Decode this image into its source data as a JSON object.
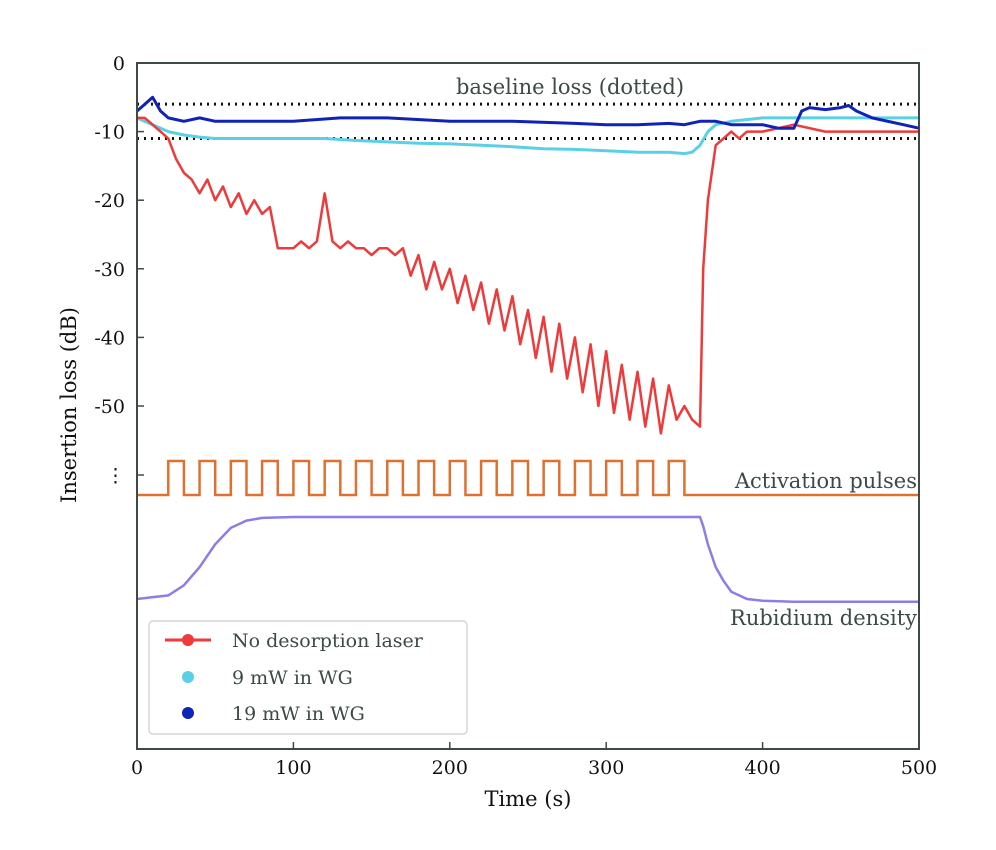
{
  "chart_data": {
    "type": "line",
    "title": "",
    "xlabel": "Time (s)",
    "ylabel": "Insertion loss (dB)",
    "xlim": [
      0,
      500
    ],
    "ylim": [
      0,
      -100
    ],
    "x_ticks": [
      "0",
      "100",
      "200",
      "300",
      "400",
      "500"
    ],
    "y_ticks": [
      "0",
      "-10",
      "-20",
      "-30",
      "-40",
      "-50",
      "⋮"
    ],
    "baseline": {
      "label": "baseline loss (dotted)",
      "levels": [
        -6,
        -11
      ]
    },
    "series": [
      {
        "name": "No desorption laser",
        "color": "#ee3a3a",
        "x": [
          0,
          5,
          10,
          15,
          20,
          25,
          30,
          35,
          40,
          45,
          50,
          55,
          60,
          65,
          70,
          75,
          80,
          85,
          90,
          95,
          100,
          105,
          110,
          115,
          120,
          125,
          130,
          135,
          140,
          145,
          150,
          155,
          160,
          165,
          170,
          175,
          180,
          185,
          190,
          195,
          200,
          205,
          210,
          215,
          220,
          225,
          230,
          235,
          240,
          245,
          250,
          255,
          260,
          265,
          270,
          275,
          280,
          285,
          290,
          295,
          300,
          305,
          310,
          315,
          320,
          325,
          330,
          335,
          340,
          345,
          350,
          355,
          360,
          362,
          365,
          370,
          375,
          380,
          385,
          390,
          400,
          420,
          440,
          460,
          480,
          500
        ],
        "values": [
          -8,
          -8,
          -9,
          -10,
          -11,
          -14,
          -16,
          -17,
          -19,
          -17,
          -20,
          -18,
          -21,
          -19,
          -22,
          -20,
          -22,
          -21,
          -27,
          -27,
          -27,
          -26,
          -27,
          -26,
          -19,
          -26,
          -27,
          -26,
          -27,
          -27,
          -28,
          -27,
          -27,
          -28,
          -27,
          -31,
          -28,
          -33,
          -29,
          -33,
          -30,
          -35,
          -31,
          -36,
          -32,
          -38,
          -33,
          -39,
          -34,
          -41,
          -36,
          -43,
          -37,
          -45,
          -38,
          -46,
          -40,
          -48,
          -41,
          -50,
          -42,
          -51,
          -44,
          -52,
          -45,
          -53,
          -46,
          -54,
          -47,
          -52,
          -50,
          -52,
          -53,
          -30,
          -20,
          -12,
          -11,
          -10,
          -11,
          -10,
          -10,
          -9,
          -10,
          -10,
          -10,
          -10
        ]
      },
      {
        "name": "9 mW in WG",
        "color": "#5ad0e6",
        "x": [
          0,
          10,
          20,
          30,
          40,
          50,
          60,
          70,
          80,
          90,
          100,
          120,
          140,
          160,
          180,
          200,
          220,
          240,
          260,
          280,
          300,
          320,
          340,
          350,
          355,
          360,
          365,
          370,
          380,
          400,
          450,
          500
        ],
        "values": [
          -8,
          -9,
          -10,
          -10.5,
          -10.8,
          -11,
          -11,
          -11,
          -11,
          -11,
          -11,
          -11,
          -11.3,
          -11.5,
          -11.7,
          -11.8,
          -12,
          -12.2,
          -12.5,
          -12.6,
          -12.8,
          -13,
          -13,
          -13.2,
          -13,
          -12,
          -10,
          -9,
          -8.5,
          -8,
          -8,
          -8
        ]
      },
      {
        "name": "19 mW in WG",
        "color": "#1022b8",
        "x": [
          0,
          5,
          10,
          15,
          20,
          30,
          40,
          50,
          60,
          80,
          100,
          130,
          160,
          200,
          240,
          280,
          300,
          320,
          340,
          350,
          360,
          370,
          380,
          400,
          410,
          420,
          425,
          430,
          440,
          450,
          455,
          460,
          470,
          480,
          490,
          500
        ],
        "values": [
          -7,
          -6,
          -5,
          -7,
          -8,
          -8.5,
          -8,
          -8.5,
          -8.5,
          -8.5,
          -8.5,
          -8,
          -8,
          -8.5,
          -8.5,
          -8.8,
          -9,
          -9,
          -8.8,
          -9,
          -8.5,
          -8.5,
          -9,
          -9,
          -9.5,
          -9.5,
          -7,
          -6.5,
          -6.8,
          -6.5,
          -6.2,
          -7,
          -8,
          -8.5,
          -9,
          -9.5
        ]
      },
      {
        "name": "Activation pulses",
        "color": "#e07030",
        "period_s": 20,
        "on_s": 10,
        "first_on_s": 20,
        "last_off_s": 350,
        "levels": [
          0,
          1
        ]
      },
      {
        "name": "Rubidium density",
        "color": "#8a7ee8",
        "x": [
          0,
          20,
          30,
          40,
          50,
          60,
          70,
          80,
          100,
          200,
          300,
          360,
          362,
          365,
          370,
          375,
          380,
          390,
          400,
          420,
          500
        ],
        "values": [
          0.1,
          0.14,
          0.25,
          0.45,
          0.7,
          0.88,
          0.96,
          0.99,
          1,
          1,
          1,
          1,
          0.9,
          0.7,
          0.45,
          0.3,
          0.18,
          0.1,
          0.08,
          0.07,
          0.07
        ]
      }
    ],
    "annotations": [
      {
        "text": "baseline loss (dotted)"
      },
      {
        "text": "Activation pulses"
      },
      {
        "text": "Rubidium density"
      }
    ],
    "legend": {
      "location": "lower-left",
      "entries": [
        {
          "label": "No desorption laser",
          "color": "#ee3a3a",
          "style": "line-marker"
        },
        {
          "label": "9 mW in WG",
          "color": "#5ad0e6",
          "style": "marker"
        },
        {
          "label": "19 mW in WG",
          "color": "#1022b8",
          "style": "marker"
        }
      ]
    }
  }
}
